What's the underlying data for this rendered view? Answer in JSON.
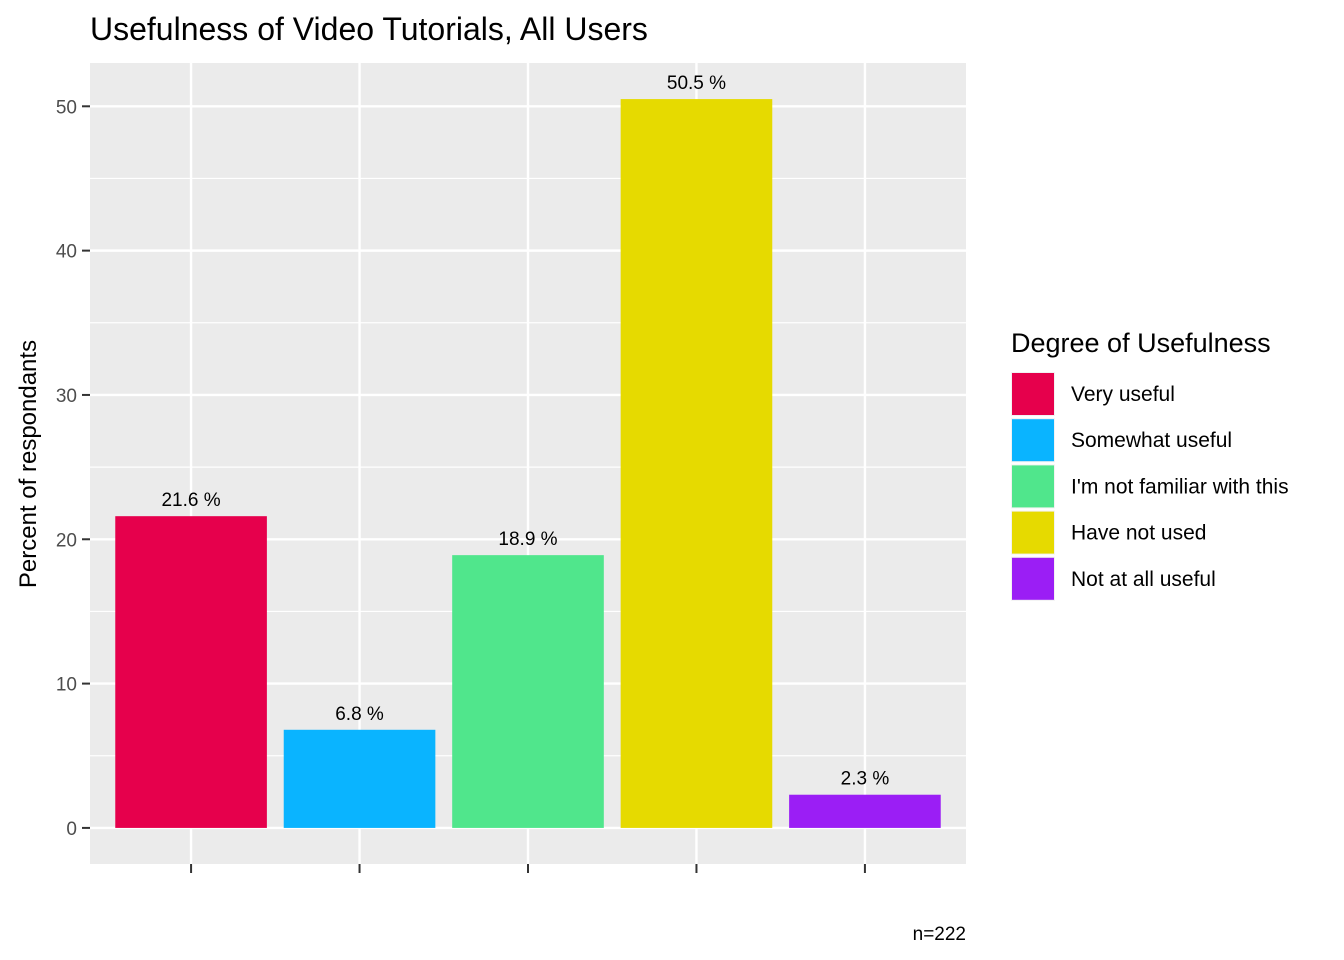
{
  "chart_data": {
    "type": "bar",
    "title": "Usefulness of Video Tutorials, All Users",
    "xlabel": "",
    "ylabel": "Percent of respondants",
    "caption": "n=222",
    "categories": [
      "Very useful",
      "Somewhat useful",
      "I'm not familiar with this",
      "Have not used",
      "Not at all useful"
    ],
    "values": [
      21.6,
      6.8,
      18.9,
      50.5,
      2.3
    ],
    "value_labels": [
      "21.6 %",
      "6.8 %",
      "18.9 %",
      "50.5 %",
      "2.3 %"
    ],
    "colors": [
      "#E6004C",
      "#0AB4FF",
      "#50E68C",
      "#E6DA00",
      "#9B1EF5"
    ],
    "ylim": [
      -2.5,
      53
    ],
    "yticks": [
      0,
      10,
      20,
      30,
      40,
      50
    ],
    "ytick_labels": [
      "0",
      "10",
      "20",
      "30",
      "40",
      "50"
    ],
    "grid": true,
    "panel_background": "#EBEBEB",
    "legend": {
      "title": "Degree of Usefulness",
      "position": "right",
      "entries": [
        "Very useful",
        "Somewhat useful",
        "I'm not familiar with this",
        "Have not used",
        "Not at all useful"
      ]
    }
  }
}
